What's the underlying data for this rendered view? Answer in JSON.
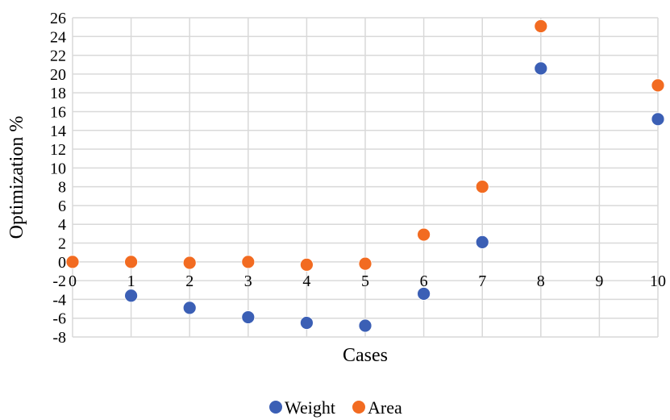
{
  "chart_data": {
    "type": "scatter",
    "title": "",
    "xlabel": "Cases",
    "ylabel": "Optimization %",
    "xlim": [
      0,
      10
    ],
    "ylim": [
      -8,
      26
    ],
    "x_ticks": [
      0,
      1,
      2,
      3,
      4,
      5,
      6,
      7,
      8,
      9,
      10
    ],
    "y_ticks": [
      -8,
      -6,
      -4,
      -2,
      0,
      2,
      4,
      6,
      8,
      10,
      12,
      14,
      16,
      18,
      20,
      22,
      24,
      26
    ],
    "grid": true,
    "legend_position": "bottom",
    "series": [
      {
        "name": "Weight",
        "color": "#3b5fb5",
        "points": [
          {
            "x": 0,
            "y": 0
          },
          {
            "x": 1,
            "y": -3.6
          },
          {
            "x": 2,
            "y": -4.9
          },
          {
            "x": 3,
            "y": -5.9
          },
          {
            "x": 4,
            "y": -6.5
          },
          {
            "x": 5,
            "y": -6.8
          },
          {
            "x": 6,
            "y": -3.4
          },
          {
            "x": 7,
            "y": 2.1
          },
          {
            "x": 8,
            "y": 20.6
          },
          {
            "x": 10,
            "y": 15.2
          }
        ]
      },
      {
        "name": "Area",
        "color": "#f26b21",
        "points": [
          {
            "x": 0,
            "y": 0
          },
          {
            "x": 1,
            "y": 0
          },
          {
            "x": 2,
            "y": -0.1
          },
          {
            "x": 3,
            "y": 0
          },
          {
            "x": 4,
            "y": -0.3
          },
          {
            "x": 5,
            "y": -0.2
          },
          {
            "x": 6,
            "y": 2.9
          },
          {
            "x": 7,
            "y": 8.0
          },
          {
            "x": 8,
            "y": 25.1
          },
          {
            "x": 10,
            "y": 18.8
          }
        ]
      }
    ]
  }
}
